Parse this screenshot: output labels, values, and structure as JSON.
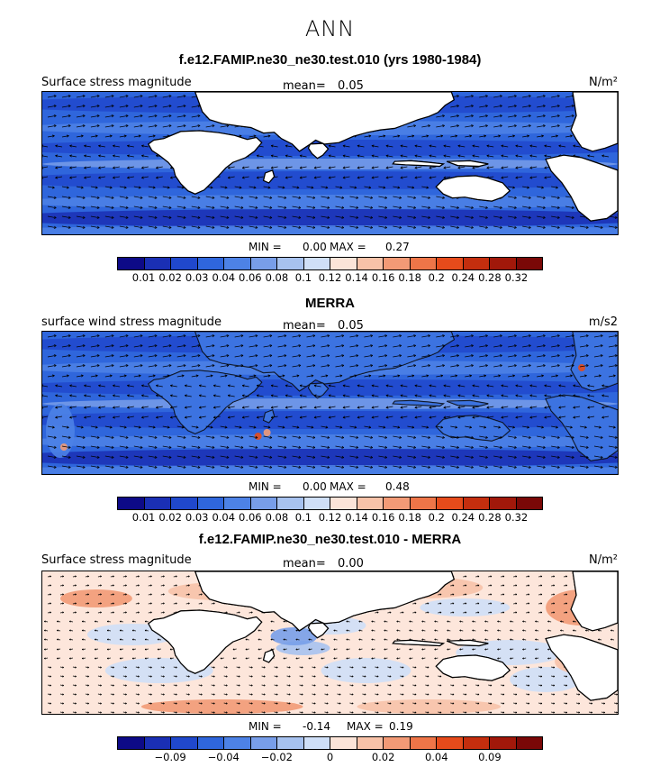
{
  "title": "ANN",
  "colors": {
    "seq": [
      "#0d0a87",
      "#1a2fb4",
      "#2048cc",
      "#2f66dc",
      "#4d82e6",
      "#789ee9",
      "#a7c2ef",
      "#cfdff7",
      "#fbe4d8",
      "#f7c2a8",
      "#f29a76",
      "#ee7548",
      "#e64b1b",
      "#c42e0e",
      "#a1180a",
      "#7a0807"
    ],
    "div": [
      "#0d0a87",
      "#1a2fb4",
      "#2048cc",
      "#2f66dc",
      "#4d82e6",
      "#789ee9",
      "#a7c2ef",
      "#cfdff7",
      "#fbe4d8",
      "#f7c2a8",
      "#f29a76",
      "#ee7548",
      "#e64b1b",
      "#c42e0e",
      "#a1180a",
      "#7a0807"
    ]
  },
  "panels": [
    {
      "title": "f.e12.FAMIP.ne30_ne30.test.010 (yrs 1980-1984)",
      "left_label": "Surface stress magnitude",
      "mean_label": "mean=",
      "mean_value": "0.05",
      "units": "N/m²",
      "min_label": "MIN =",
      "min_value": "0.00",
      "max_label": "MAX =",
      "max_value": "0.27",
      "ticks": [
        "0.01",
        "0.02",
        "0.03",
        "0.04",
        "0.06",
        "0.08",
        "0.1",
        "0.12",
        "0.14",
        "0.16",
        "0.18",
        "0.2",
        "0.24",
        "0.28",
        "0.32"
      ],
      "palette": "seq",
      "style": "model"
    },
    {
      "title": "MERRA",
      "left_label": "surface wind stress magnitude",
      "mean_label": "mean=",
      "mean_value": "0.05",
      "units": "m/s2",
      "min_label": "MIN =",
      "min_value": "0.00",
      "max_label": "MAX =",
      "max_value": "0.48",
      "ticks": [
        "0.01",
        "0.02",
        "0.03",
        "0.04",
        "0.06",
        "0.08",
        "0.1",
        "0.12",
        "0.14",
        "0.16",
        "0.18",
        "0.2",
        "0.24",
        "0.28",
        "0.32"
      ],
      "palette": "seq",
      "style": "obs"
    },
    {
      "title": "f.e12.FAMIP.ne30_ne30.test.010 - MERRA",
      "left_label": "Surface stress magnitude",
      "mean_label": "mean=",
      "mean_value": "0.00",
      "units": "N/m²",
      "min_label": "MIN =",
      "min_value": "-0.14",
      "max_label": "MAX =",
      "max_value": "0.19",
      "ticks": [
        "",
        "−0.09",
        "",
        "−0.04",
        "",
        "−0.02",
        "",
        "0",
        "",
        "0.02",
        "",
        "0.04",
        "",
        "0.09",
        ""
      ],
      "palette": "div",
      "style": "diff"
    }
  ]
}
